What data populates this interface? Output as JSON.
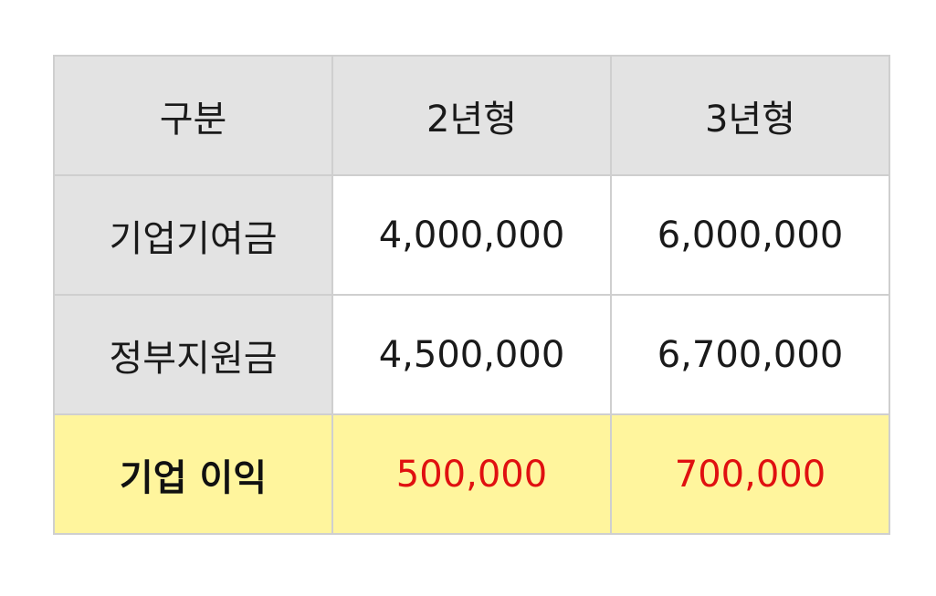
{
  "table": {
    "headers": [
      "구분",
      "2년형",
      "3년형"
    ],
    "rows": [
      {
        "label": "기업기여금",
        "values": [
          "4,000,000",
          "6,000,000"
        ]
      },
      {
        "label": "정부지원금",
        "values": [
          "4,500,000",
          "6,700,000"
        ]
      }
    ],
    "total": {
      "label": "기업 이익",
      "values": [
        "500,000",
        "700,000"
      ]
    }
  },
  "colors": {
    "header_bg": "#e3e3e3",
    "total_bg": "#fff59d",
    "highlight_text": "#e01010",
    "border": "#cfcfcf"
  }
}
